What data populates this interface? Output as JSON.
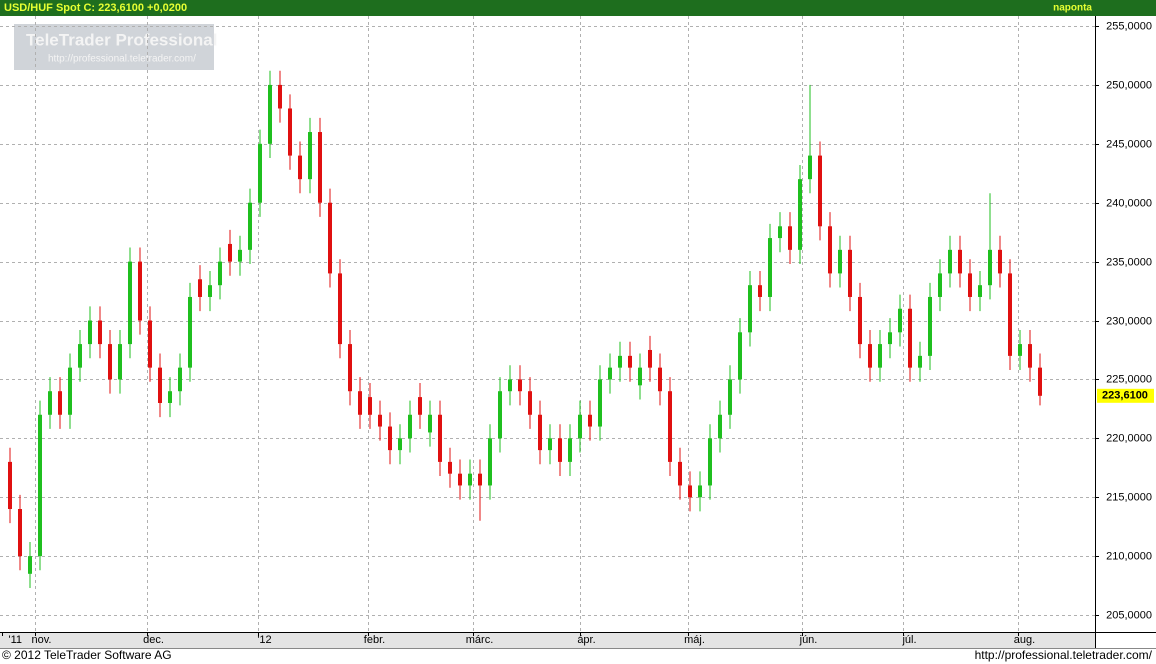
{
  "chart_data": {
    "type": "candlestick",
    "title": "USD/HUF Spot C: 223,6100 +0,0200",
    "frequency": "naponta",
    "watermark": {
      "title": "TeleTrader Professional",
      "url": "http://professional.teletrader.com/"
    },
    "footer": {
      "copyright": "© 2012 TeleTrader Software AG",
      "url": "http://professional.teletrader.com/"
    },
    "up_color": "#1fbf1f",
    "down_color": "#e01010",
    "grid": true,
    "last_value_label": "223,6100",
    "xlim": [
      -1,
      108.5
    ],
    "xticks": [
      {
        "value": -0.8,
        "label": "'11"
      },
      {
        "value": 2.5,
        "label": "nov."
      },
      {
        "value": 13.7,
        "label": "dec."
      },
      {
        "value": 24.8,
        "label": "'12"
      },
      {
        "value": 35.8,
        "label": "febr."
      },
      {
        "value": 46.3,
        "label": "márc."
      },
      {
        "value": 57,
        "label": "ápr."
      },
      {
        "value": 67.8,
        "label": "máj."
      },
      {
        "value": 79.2,
        "label": "jún."
      },
      {
        "value": 89.3,
        "label": "júl."
      },
      {
        "value": 100.8,
        "label": "aug."
      }
    ],
    "ylim": [
      203.56,
      255.85
    ],
    "yticks": [
      {
        "value": 205,
        "label": "205,0000"
      },
      {
        "value": 210,
        "label": "210,0000"
      },
      {
        "value": 215,
        "label": "215,0000"
      },
      {
        "value": 220,
        "label": "220,0000"
      },
      {
        "value": 225,
        "label": "225,0000"
      },
      {
        "value": 230,
        "label": "230,0000"
      },
      {
        "value": 235,
        "label": "235,0000"
      },
      {
        "value": 240,
        "label": "240,0000"
      },
      {
        "value": 245,
        "label": "245,0000"
      },
      {
        "value": 250,
        "label": "250,0000"
      },
      {
        "value": 255,
        "label": "255,0000"
      }
    ],
    "x": [
      0,
      1,
      2,
      3,
      4,
      5,
      6,
      7,
      8,
      9,
      10,
      11,
      12,
      13,
      14,
      15,
      16,
      17,
      18,
      19,
      20,
      21,
      22,
      23,
      24,
      25,
      26,
      27,
      28,
      29,
      30,
      31,
      32,
      33,
      34,
      35,
      36,
      37,
      38,
      39,
      40,
      41,
      42,
      43,
      44,
      45,
      46,
      47,
      48,
      49,
      50,
      51,
      52,
      53,
      54,
      55,
      56,
      57,
      58,
      59,
      60,
      61,
      62,
      63,
      64,
      65,
      66,
      67,
      68,
      69,
      70,
      71,
      72,
      73,
      74,
      75,
      76,
      77,
      78,
      79,
      80,
      81,
      82,
      83,
      84,
      85,
      86,
      87,
      88,
      89,
      90,
      91,
      92,
      93,
      94,
      95,
      96,
      97,
      98,
      99,
      100,
      101,
      102,
      103
    ],
    "open": [
      218,
      214,
      208.5,
      210,
      222,
      224,
      222,
      226,
      228,
      230,
      228,
      225,
      228,
      235,
      230,
      226,
      223,
      224,
      226,
      233.5,
      232,
      233,
      236.5,
      235,
      236,
      240,
      245,
      250,
      248,
      244,
      242,
      246,
      240,
      234,
      228,
      224,
      223.5,
      222,
      221,
      219,
      220,
      223.5,
      220.5,
      222,
      218,
      217,
      216,
      217,
      216,
      220,
      224,
      225,
      224,
      222,
      219,
      220,
      218,
      220,
      222,
      221,
      225,
      226,
      227,
      224.5,
      227.5,
      226,
      224,
      218,
      216,
      215,
      216,
      220,
      222,
      225,
      229,
      233,
      232,
      237,
      238,
      236,
      242,
      244,
      238,
      234,
      236,
      232,
      228,
      226,
      228,
      229,
      231,
      226,
      227,
      232,
      234,
      236,
      234,
      232,
      233,
      236,
      234,
      227,
      228,
      226
    ],
    "high": [
      219.2,
      215.2,
      211.2,
      223.2,
      225.2,
      225.2,
      227.2,
      229.2,
      231.2,
      231.2,
      229.2,
      229.2,
      236.2,
      236.2,
      231.2,
      227.2,
      225.2,
      227.2,
      233.2,
      234.7,
      234.2,
      236.2,
      237.7,
      237.2,
      241.2,
      246.2,
      251.2,
      251.2,
      249.2,
      245.2,
      247.2,
      247.2,
      241.2,
      235.2,
      229.2,
      225.2,
      224.7,
      223.2,
      222.2,
      221.2,
      223.2,
      224.7,
      223.2,
      223.2,
      219.2,
      218.2,
      218.2,
      218.2,
      221.2,
      225.2,
      226.2,
      226.2,
      225.2,
      223.2,
      221.2,
      221.2,
      221.2,
      223.2,
      223.2,
      226.2,
      227.2,
      228.2,
      228.2,
      227.2,
      228.7,
      227.2,
      225.2,
      219.2,
      217.2,
      217.2,
      221.2,
      223.2,
      226.2,
      230.2,
      234.2,
      234.2,
      238.2,
      239.2,
      239.2,
      243.2,
      250.0,
      245.2,
      239.2,
      237.2,
      237.2,
      233.2,
      229.2,
      229.2,
      230.2,
      232.2,
      232.2,
      228.2,
      233.2,
      235.2,
      237.2,
      237.2,
      235.2,
      234.2,
      240.8,
      237.2,
      235.2,
      229.2,
      229.2,
      227.2
    ],
    "low": [
      212.8,
      208.8,
      207.3,
      208.8,
      220.8,
      220.8,
      220.8,
      224.8,
      226.8,
      226.8,
      223.8,
      223.8,
      226.8,
      228.8,
      224.8,
      221.8,
      221.8,
      222.8,
      224.8,
      230.8,
      230.8,
      231.8,
      233.8,
      233.8,
      234.8,
      238.8,
      243.8,
      246.8,
      242.8,
      240.8,
      240.8,
      238.8,
      232.8,
      226.8,
      222.8,
      220.8,
      220.8,
      219.8,
      217.8,
      217.8,
      218.8,
      220.8,
      219.3,
      216.8,
      215.8,
      214.8,
      214.8,
      213.0,
      214.8,
      218.8,
      222.8,
      222.8,
      220.8,
      217.8,
      217.8,
      216.8,
      216.8,
      218.8,
      219.8,
      219.8,
      223.8,
      224.8,
      224.8,
      223.3,
      224.8,
      222.8,
      216.8,
      214.8,
      213.8,
      213.8,
      214.8,
      218.8,
      220.8,
      223.8,
      227.8,
      230.8,
      230.8,
      235.8,
      234.8,
      234.8,
      240.8,
      236.8,
      232.8,
      232.8,
      230.8,
      226.8,
      224.8,
      224.8,
      226.8,
      227.8,
      224.8,
      224.8,
      225.8,
      230.8,
      232.8,
      232.8,
      230.8,
      230.8,
      231.8,
      232.8,
      225.8,
      225.8,
      224.8,
      222.8
    ],
    "close": [
      214,
      210,
      210,
      222,
      224,
      222,
      226,
      228,
      230,
      228,
      225,
      228,
      235,
      230,
      226,
      223,
      224,
      226,
      232,
      232,
      233,
      235,
      235,
      236,
      240,
      245,
      250,
      248,
      244,
      242,
      246,
      240,
      234,
      228,
      224,
      222,
      222,
      221,
      219,
      220,
      222,
      222,
      222,
      218,
      217,
      216,
      217,
      216,
      220,
      224,
      225,
      224,
      222,
      219,
      220,
      218,
      220,
      222,
      221,
      225,
      226,
      227,
      226,
      226,
      226,
      224,
      218,
      216,
      215,
      216,
      220,
      222,
      225,
      229,
      233,
      232,
      237,
      238,
      236,
      242,
      244,
      238,
      234,
      236,
      232,
      228,
      226,
      228,
      229,
      231,
      226,
      227,
      232,
      234,
      236,
      234,
      232,
      233,
      236,
      234,
      227,
      228,
      226,
      223.61
    ]
  }
}
